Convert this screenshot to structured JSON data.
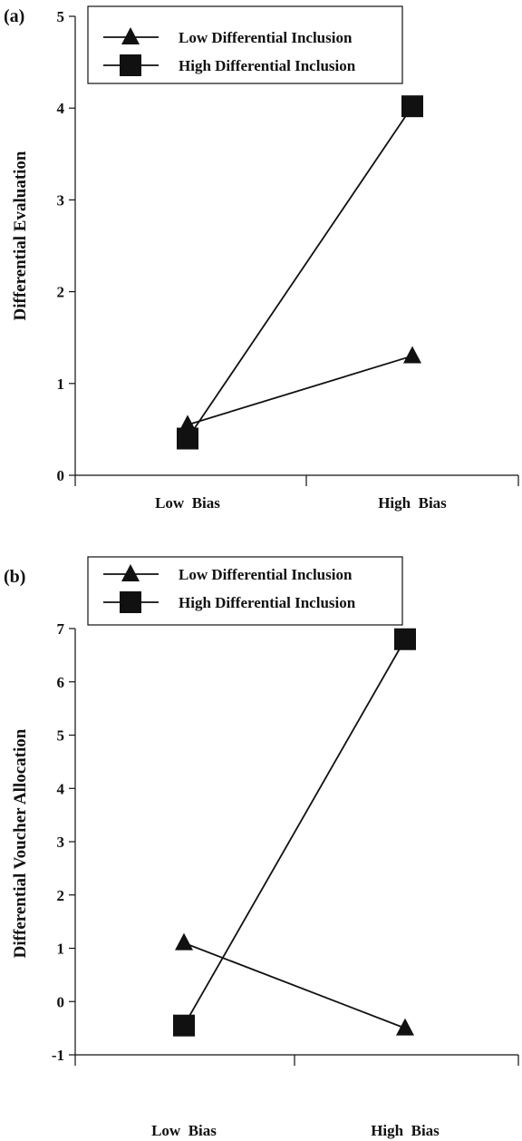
{
  "chart_data": [
    {
      "panel_label": "(a)",
      "type": "line",
      "ylabel": "Differential Evaluation",
      "xlabel": "",
      "categories": [
        "Low  Bias",
        "High  Bias"
      ],
      "ylim": [
        0,
        5
      ],
      "yticks": [
        0,
        1,
        2,
        3,
        4,
        5
      ],
      "grid": false,
      "legend": "top-left",
      "series": [
        {
          "name": "Low Differential Inclusion",
          "marker": "triangle",
          "values": [
            0.55,
            1.3
          ]
        },
        {
          "name": "High Differential Inclusion",
          "marker": "square",
          "values": [
            0.4,
            4.02
          ]
        }
      ]
    },
    {
      "panel_label": "(b)",
      "type": "line",
      "ylabel": "Differential Voucher Allocation",
      "xlabel": "",
      "categories": [
        "Low  Bias",
        "High  Bias"
      ],
      "ylim": [
        -1,
        7
      ],
      "yticks": [
        -1,
        0,
        1,
        2,
        3,
        4,
        5,
        6,
        7
      ],
      "grid": false,
      "legend": "top-left",
      "series": [
        {
          "name": "Low Differential Inclusion",
          "marker": "triangle",
          "values": [
            1.1,
            -0.5
          ]
        },
        {
          "name": "High Differential Inclusion",
          "marker": "square",
          "values": [
            -0.45,
            6.8
          ]
        }
      ]
    }
  ]
}
